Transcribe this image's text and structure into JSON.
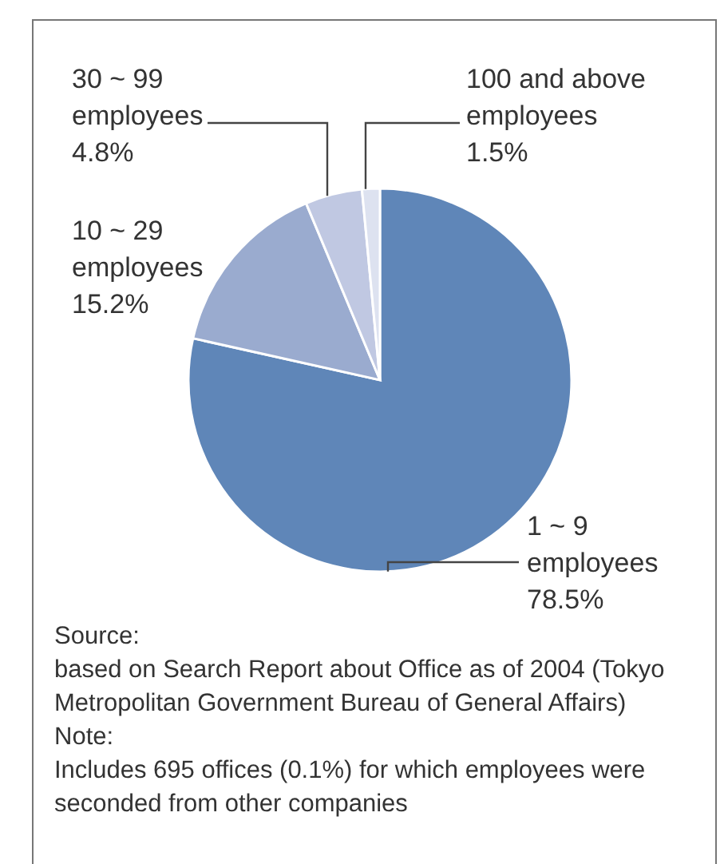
{
  "chart_data": {
    "type": "pie",
    "categories": [
      "1 ~ 9\nemployees",
      "10 ~ 29\nemployees",
      "30 ~ 99\nemployees",
      "100 and above\nemployees"
    ],
    "values": [
      78.5,
      15.2,
      4.8,
      1.5
    ],
    "value_labels": [
      "78.5%",
      "15.2%",
      "4.8%",
      "1.5%"
    ],
    "colors": [
      "#5f86b8",
      "#9aabcf",
      "#c0c8e2",
      "#dde2f0"
    ],
    "annotations": [
      "Source:",
      "based on Search Report about Office as of 2004 (Tokyo Metropolitan Government Bureau of General Affairs)",
      "Note:",
      "Includes 695 offices (0.1%) for which employees were seconded from other companies"
    ]
  }
}
